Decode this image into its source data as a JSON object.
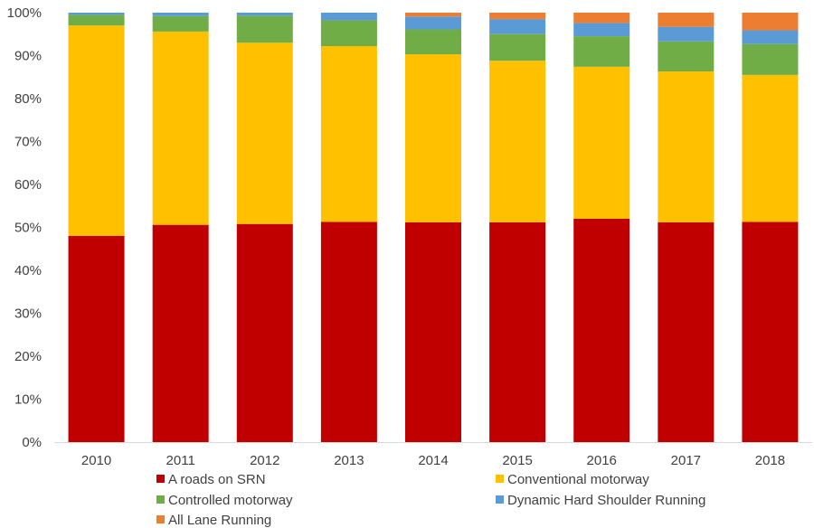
{
  "chart_data": {
    "type": "bar",
    "stacked": true,
    "percent_stacked": true,
    "title": "",
    "xlabel": "",
    "ylabel": "",
    "ylim": [
      0,
      100
    ],
    "y_ticks": [
      "0%",
      "10%",
      "20%",
      "30%",
      "40%",
      "50%",
      "60%",
      "70%",
      "80%",
      "90%",
      "100%"
    ],
    "grid": false,
    "legend_position": "bottom",
    "categories": [
      "2010",
      "2011",
      "2012",
      "2013",
      "2014",
      "2015",
      "2016",
      "2017",
      "2018"
    ],
    "series": [
      {
        "name": "A roads on SRN",
        "color": "#c00000",
        "values": [
          48.0,
          50.6,
          50.8,
          51.3,
          51.2,
          51.2,
          52.0,
          51.2,
          51.3
        ]
      },
      {
        "name": "Conventional motorway",
        "color": "#ffc000",
        "values": [
          49.0,
          45.0,
          42.2,
          40.9,
          39.1,
          37.6,
          35.4,
          35.1,
          34.2
        ]
      },
      {
        "name": "Controlled motorway",
        "color": "#70ad47",
        "values": [
          2.5,
          3.6,
          6.3,
          6.0,
          5.8,
          6.2,
          7.1,
          7.0,
          7.2
        ]
      },
      {
        "name": "Dynamic Hard Shoulder Running",
        "color": "#5b9bd5",
        "values": [
          0.5,
          0.8,
          0.7,
          1.8,
          3.0,
          3.5,
          3.1,
          3.4,
          3.2
        ]
      },
      {
        "name": "All Lane Running",
        "color": "#ed7d31",
        "values": [
          0.0,
          0.0,
          0.0,
          0.0,
          0.9,
          1.5,
          2.4,
          3.3,
          4.1
        ]
      }
    ]
  },
  "legend": {
    "items": [
      {
        "label": "A roads on SRN",
        "color": "#c00000"
      },
      {
        "label": "Conventional motorway",
        "color": "#ffc000"
      },
      {
        "label": "Controlled motorway",
        "color": "#70ad47"
      },
      {
        "label": "Dynamic Hard Shoulder Running",
        "color": "#5b9bd5"
      },
      {
        "label": "All Lane Running",
        "color": "#ed7d31"
      }
    ]
  }
}
